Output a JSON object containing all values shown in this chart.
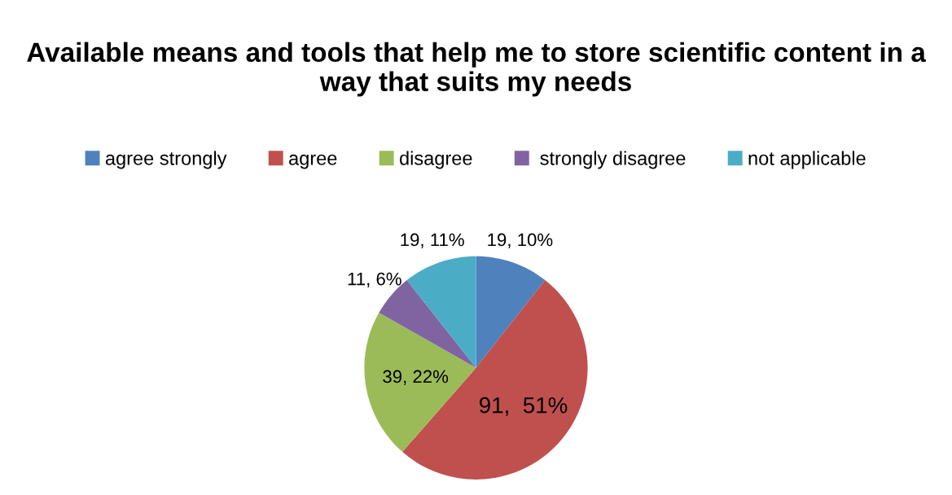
{
  "chart_data": {
    "type": "pie",
    "title": "Available means and tools that help me to store scientific content in a way that suits my needs",
    "categories": [
      "agree strongly",
      "agree",
      "disagree",
      " strongly disagree",
      "not applicable"
    ],
    "values": [
      19,
      91,
      39,
      11,
      19
    ],
    "colors": [
      "#4f81bd",
      "#c0504d",
      "#9bbb59",
      "#8064a2",
      "#4bacc6"
    ],
    "value_labels": [
      "19, 10%",
      "91,  51%",
      "39, 22%",
      "11, 6%",
      "19, 11%"
    ],
    "legend": "top"
  }
}
